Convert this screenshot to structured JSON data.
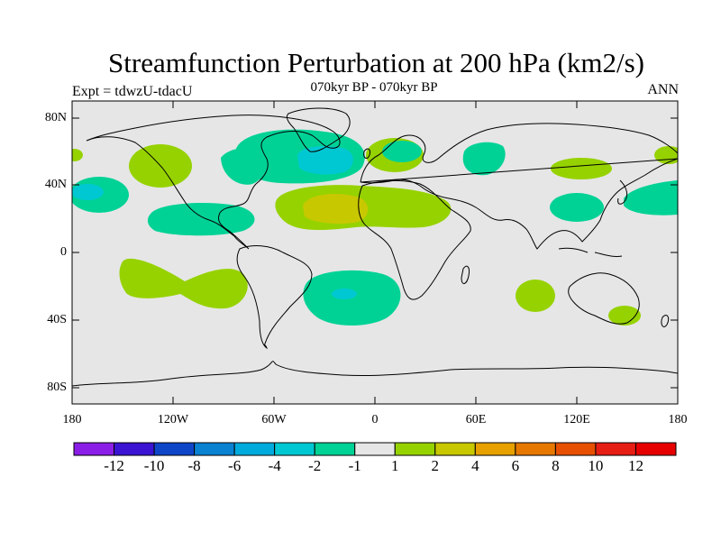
{
  "title": "Streamfunction Perturbation at 200 hPa (km2/s)",
  "subtitle": "070kyr BP - 070kyr BP",
  "left_label": "Expt = tdwzU-tdacU",
  "right_label": "ANN",
  "axes": {
    "lat_ticks": [
      "80N",
      "40N",
      "0",
      "40S",
      "80S"
    ],
    "lon_ticks": [
      "180",
      "120W",
      "60W",
      "0",
      "60E",
      "120E",
      "180"
    ]
  },
  "colors": {
    "background": "#e6e6e6",
    "coast": "#000000"
  },
  "colorbar": {
    "labels": [
      "-12",
      "-10",
      "-8",
      "-6",
      "-4",
      "-2",
      "-1",
      "1",
      "2",
      "4",
      "6",
      "8",
      "10",
      "12"
    ],
    "colors": [
      "#8a1ee6",
      "#3a14d2",
      "#0f46c8",
      "#0a82d2",
      "#00aadc",
      "#00c8d2",
      "#00d296",
      "#e6e6e6",
      "#96d200",
      "#c8c800",
      "#e6a000",
      "#e67800",
      "#e65000",
      "#e61e14",
      "#e60000"
    ]
  },
  "chart_data": {
    "type": "map",
    "title": "Streamfunction Perturbation at 200 hPa (km2/s)",
    "subtitle": "070kyr BP - 070kyr BP",
    "lon_range": [
      -180,
      180
    ],
    "lat_range": [
      -90,
      90
    ],
    "contour_levels": [
      -12,
      -10,
      -8,
      -6,
      -4,
      -2,
      -1,
      1,
      2,
      4,
      6,
      8,
      10,
      12
    ],
    "regions": [
      {
        "lon": 15,
        "lat": 72,
        "value": -1.5
      },
      {
        "lon": -35,
        "lat": 60,
        "value": -2.5
      },
      {
        "lon": -70,
        "lat": 55,
        "value": -1.5
      },
      {
        "lon": -163,
        "lat": 38,
        "value": -2.5
      },
      {
        "lon": -110,
        "lat": 20,
        "value": -1.5
      },
      {
        "lon": 65,
        "lat": 58,
        "value": -1.5
      },
      {
        "lon": 125,
        "lat": 30,
        "value": -1.5
      },
      {
        "lon": 158,
        "lat": 31,
        "value": -1.5
      },
      {
        "lon": -20,
        "lat": -25,
        "value": -2.5
      },
      {
        "lon": -30,
        "lat": 30,
        "value": 3.0
      },
      {
        "lon": -145,
        "lat": 57,
        "value": 1.5
      },
      {
        "lon": 130,
        "lat": 50,
        "value": 1.5
      },
      {
        "lon": 172,
        "lat": 60,
        "value": 1.5
      },
      {
        "lon": -140,
        "lat": -20,
        "value": 1.5
      },
      {
        "lon": 96,
        "lat": -25,
        "value": 1.5
      },
      {
        "lon": 147,
        "lat": -37,
        "value": 1.5
      }
    ]
  }
}
